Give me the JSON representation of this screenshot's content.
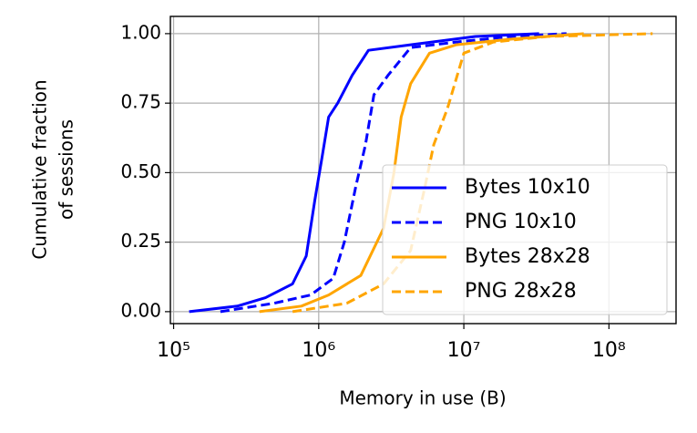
{
  "chart_data": {
    "type": "line",
    "xlabel": "Memory in use (B)",
    "ylabel": [
      "Cumulative fraction",
      "of sessions"
    ],
    "xscale": "log",
    "xlim": [
      95000,
      290000000
    ],
    "ylim": [
      -0.043,
      1.062
    ],
    "xticks": [
      {
        "value": 100000,
        "label": "10⁵"
      },
      {
        "value": 1000000,
        "label": "10⁶"
      },
      {
        "value": 10000000,
        "label": "10⁷"
      },
      {
        "value": 100000000,
        "label": "10⁸"
      }
    ],
    "yticks": [
      {
        "value": 0,
        "label": "0.00"
      },
      {
        "value": 0.25,
        "label": "0.25"
      },
      {
        "value": 0.5,
        "label": "0.50"
      },
      {
        "value": 0.75,
        "label": "0.75"
      },
      {
        "value": 1,
        "label": "1.00"
      }
    ],
    "grid": true,
    "legend": "lower right",
    "series": [
      {
        "name": "Bytes 10x10",
        "color": "#0000ff",
        "dash": false,
        "x": [
          128000,
          275000,
          430000,
          660000,
          820000,
          940000,
          1050000,
          1170000,
          1350000,
          1700000,
          2200000,
          4300000,
          12000000,
          33000000
        ],
        "values": [
          0,
          0.02,
          0.05,
          0.1,
          0.2,
          0.4,
          0.55,
          0.7,
          0.75,
          0.85,
          0.94,
          0.96,
          0.99,
          1.0
        ]
      },
      {
        "name": "PNG 10x10",
        "color": "#0000ff",
        "dash": true,
        "x": [
          210000,
          490000,
          880000,
          1260000,
          1500000,
          1800000,
          2100000,
          2400000,
          3000000,
          4300000,
          8900000,
          21000000,
          51000000
        ],
        "values": [
          0,
          0.03,
          0.06,
          0.12,
          0.25,
          0.45,
          0.6,
          0.78,
          0.85,
          0.95,
          0.97,
          0.99,
          1.0
        ]
      },
      {
        "name": "Bytes 28x28",
        "color": "#ffa500",
        "dash": false,
        "x": [
          390000,
          760000,
          1170000,
          1950000,
          2800000,
          3300000,
          3700000,
          4300000,
          5800000,
          8900000,
          21000000,
          67000000
        ],
        "values": [
          0,
          0.02,
          0.06,
          0.13,
          0.3,
          0.5,
          0.7,
          0.82,
          0.93,
          0.96,
          0.98,
          1.0
        ]
      },
      {
        "name": "PNG 28x28",
        "color": "#ffa500",
        "dash": true,
        "x": [
          660000,
          1560000,
          2800000,
          4300000,
          5400000,
          6200000,
          7700000,
          10000000,
          16000000,
          38000000,
          200000000
        ],
        "values": [
          0,
          0.03,
          0.1,
          0.22,
          0.45,
          0.6,
          0.73,
          0.93,
          0.97,
          0.99,
          1.0
        ]
      }
    ]
  }
}
